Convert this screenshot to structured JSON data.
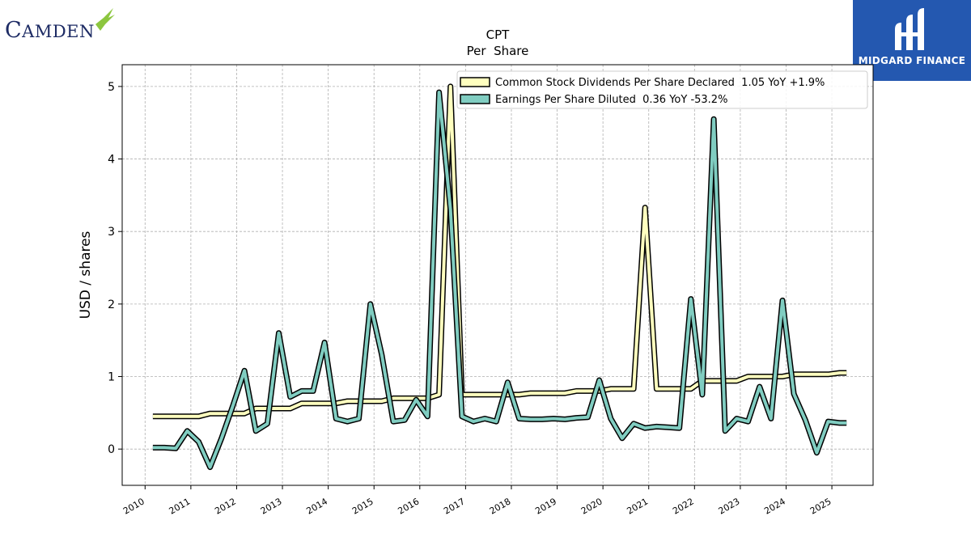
{
  "brand": {
    "left_logo_text": "Camden",
    "right_logo_text": "MIDGARD FINANCE"
  },
  "chart_data": {
    "type": "line",
    "title": "CPT",
    "subtitle": "Per  Share",
    "xlabel": "",
    "ylabel": "USD / shares",
    "ylim": [
      -0.5,
      5.3
    ],
    "xlim": [
      2009.5,
      2025.9
    ],
    "yticks": [
      0,
      1,
      2,
      3,
      4,
      5
    ],
    "xticks": [
      "2010",
      "2011",
      "2012",
      "2013",
      "2014",
      "2015",
      "2016",
      "2017",
      "2018",
      "2019",
      "2020",
      "2021",
      "2022",
      "2023",
      "2024",
      "2025"
    ],
    "grid": true,
    "legend_position": "top-right",
    "series": [
      {
        "name": "Common Stock Dividends Per Share Declared  1.05 YoY +1.9%",
        "color": "#ffffbf",
        "points": [
          [
            2010.17,
            0.45
          ],
          [
            2010.42,
            0.45
          ],
          [
            2010.67,
            0.45
          ],
          [
            2010.92,
            0.45
          ],
          [
            2011.17,
            0.45
          ],
          [
            2011.42,
            0.49
          ],
          [
            2011.67,
            0.49
          ],
          [
            2011.92,
            0.49
          ],
          [
            2012.17,
            0.49
          ],
          [
            2012.42,
            0.56
          ],
          [
            2012.67,
            0.56
          ],
          [
            2012.92,
            0.56
          ],
          [
            2013.17,
            0.56
          ],
          [
            2013.42,
            0.63
          ],
          [
            2013.67,
            0.63
          ],
          [
            2013.92,
            0.63
          ],
          [
            2014.17,
            0.63
          ],
          [
            2014.42,
            0.66
          ],
          [
            2014.67,
            0.66
          ],
          [
            2014.92,
            0.66
          ],
          [
            2015.17,
            0.66
          ],
          [
            2015.42,
            0.7
          ],
          [
            2015.67,
            0.7
          ],
          [
            2015.92,
            0.7
          ],
          [
            2016.17,
            0.7
          ],
          [
            2016.42,
            0.75
          ],
          [
            2016.67,
            5.0
          ],
          [
            2016.92,
            0.75
          ],
          [
            2017.17,
            0.75
          ],
          [
            2017.42,
            0.75
          ],
          [
            2017.67,
            0.75
          ],
          [
            2017.92,
            0.75
          ],
          [
            2018.17,
            0.75
          ],
          [
            2018.42,
            0.77
          ],
          [
            2018.67,
            0.77
          ],
          [
            2018.92,
            0.77
          ],
          [
            2019.17,
            0.77
          ],
          [
            2019.42,
            0.8
          ],
          [
            2019.67,
            0.8
          ],
          [
            2019.92,
            0.8
          ],
          [
            2020.17,
            0.83
          ],
          [
            2020.42,
            0.83
          ],
          [
            2020.67,
            0.83
          ],
          [
            2020.92,
            3.33
          ],
          [
            2021.17,
            0.83
          ],
          [
            2021.42,
            0.83
          ],
          [
            2021.67,
            0.83
          ],
          [
            2021.92,
            0.83
          ],
          [
            2022.17,
            0.94
          ],
          [
            2022.42,
            0.94
          ],
          [
            2022.67,
            0.94
          ],
          [
            2022.92,
            0.94
          ],
          [
            2023.17,
            1.0
          ],
          [
            2023.42,
            1.0
          ],
          [
            2023.67,
            1.0
          ],
          [
            2023.92,
            1.0
          ],
          [
            2024.17,
            1.03
          ],
          [
            2024.42,
            1.03
          ],
          [
            2024.67,
            1.03
          ],
          [
            2024.92,
            1.03
          ],
          [
            2025.17,
            1.05
          ],
          [
            2025.32,
            1.05
          ]
        ]
      },
      {
        "name": "Earnings Per Share Diluted  0.36 YoY -53.2%",
        "color": "#80cdc1",
        "points": [
          [
            2010.17,
            0.02
          ],
          [
            2010.42,
            0.02
          ],
          [
            2010.67,
            0.01
          ],
          [
            2010.92,
            0.25
          ],
          [
            2011.17,
            0.1
          ],
          [
            2011.42,
            -0.25
          ],
          [
            2011.67,
            0.15
          ],
          [
            2011.92,
            0.6
          ],
          [
            2012.17,
            1.08
          ],
          [
            2012.42,
            0.25
          ],
          [
            2012.67,
            0.35
          ],
          [
            2012.92,
            1.6
          ],
          [
            2013.17,
            0.72
          ],
          [
            2013.42,
            0.8
          ],
          [
            2013.67,
            0.8
          ],
          [
            2013.92,
            1.47
          ],
          [
            2014.17,
            0.42
          ],
          [
            2014.42,
            0.38
          ],
          [
            2014.67,
            0.42
          ],
          [
            2014.92,
            2.0
          ],
          [
            2015.17,
            1.3
          ],
          [
            2015.42,
            0.38
          ],
          [
            2015.67,
            0.4
          ],
          [
            2015.92,
            0.68
          ],
          [
            2016.17,
            0.45
          ],
          [
            2016.42,
            4.92
          ],
          [
            2016.67,
            3.3
          ],
          [
            2016.92,
            0.45
          ],
          [
            2017.17,
            0.38
          ],
          [
            2017.42,
            0.42
          ],
          [
            2017.67,
            0.38
          ],
          [
            2017.92,
            0.92
          ],
          [
            2018.17,
            0.42
          ],
          [
            2018.42,
            0.41
          ],
          [
            2018.67,
            0.41
          ],
          [
            2018.92,
            0.42
          ],
          [
            2019.17,
            0.41
          ],
          [
            2019.42,
            0.43
          ],
          [
            2019.67,
            0.44
          ],
          [
            2019.92,
            0.95
          ],
          [
            2020.17,
            0.42
          ],
          [
            2020.42,
            0.15
          ],
          [
            2020.67,
            0.35
          ],
          [
            2020.92,
            0.29
          ],
          [
            2021.17,
            0.31
          ],
          [
            2021.42,
            0.3
          ],
          [
            2021.67,
            0.29
          ],
          [
            2021.92,
            2.07
          ],
          [
            2022.17,
            0.75
          ],
          [
            2022.42,
            4.55
          ],
          [
            2022.67,
            0.25
          ],
          [
            2022.92,
            0.42
          ],
          [
            2023.17,
            0.38
          ],
          [
            2023.42,
            0.86
          ],
          [
            2023.67,
            0.42
          ],
          [
            2023.92,
            2.05
          ],
          [
            2024.17,
            0.76
          ],
          [
            2024.42,
            0.4
          ],
          [
            2024.67,
            -0.05
          ],
          [
            2024.92,
            0.38
          ],
          [
            2025.17,
            0.36
          ],
          [
            2025.32,
            0.36
          ]
        ]
      }
    ]
  }
}
